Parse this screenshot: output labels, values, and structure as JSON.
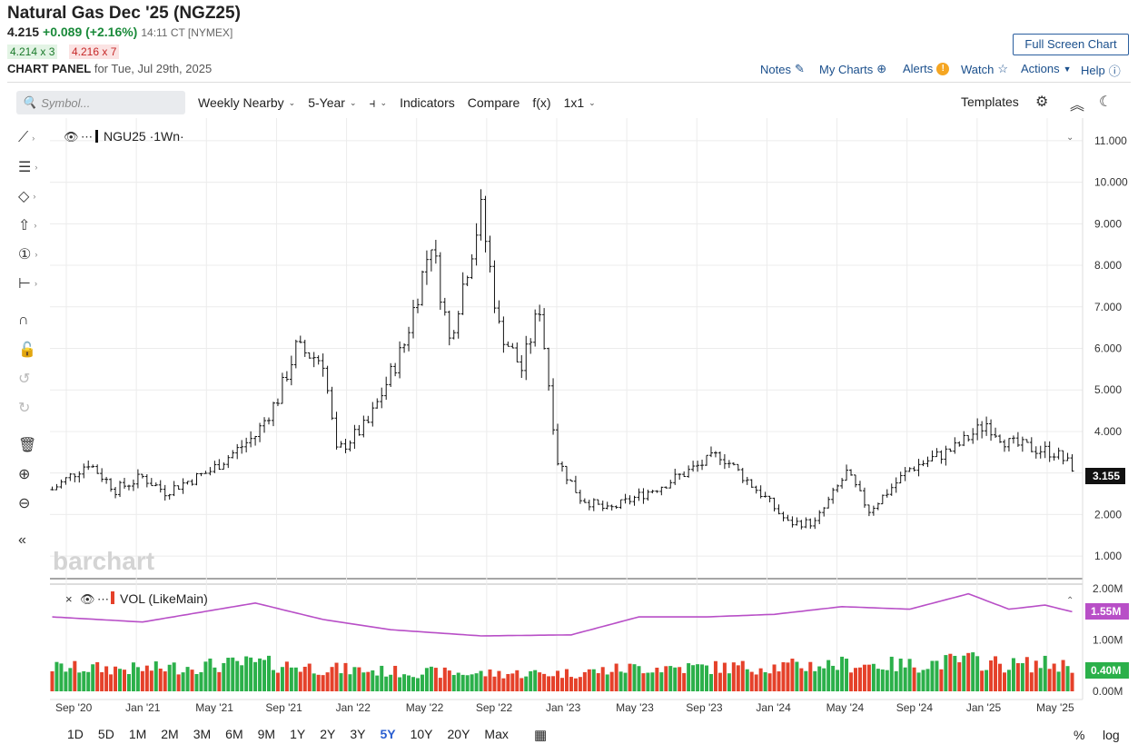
{
  "header": {
    "title": "Natural Gas Dec '25 (NGZ25)",
    "last": "4.215",
    "change": "+0.089 (+2.16%)",
    "time": "14:11 CT [NYMEX]",
    "bid": "4.214 x 3",
    "ask": "4.216 x 7",
    "panel_label": "CHART PANEL",
    "panel_date": "for Tue, Jul 29th, 2025",
    "fullscreen": "Full Screen Chart",
    "links": {
      "notes": "Notes",
      "mycharts": "My Charts",
      "alerts": "Alerts",
      "watch": "Watch",
      "actions": "Actions",
      "help": "Help"
    }
  },
  "toolbar": {
    "symbol_placeholder": "Symbol...",
    "interval": "Weekly Nearby",
    "range": "5-Year",
    "indicators": "Indicators",
    "compare": "Compare",
    "fx": "f(x)",
    "layout": "1x1",
    "templates": "Templates"
  },
  "chart_data": [
    {
      "type": "ohlc",
      "legend": "NGU25 ·1Wn·",
      "last_value_label": "3.155",
      "y_ticks": [
        "11.000",
        "10.000",
        "9.000",
        "8.000",
        "7.000",
        "6.000",
        "5.000",
        "4.000",
        "3.000",
        "2.000",
        "1.000"
      ],
      "ylim": [
        0.5,
        11.5
      ],
      "x_ticks": [
        "Sep '20",
        "Jan '21",
        "May '21",
        "Sep '21",
        "Jan '22",
        "May '22",
        "Sep '22",
        "Jan '23",
        "May '23",
        "Sep '23",
        "Jan '24",
        "May '24",
        "Sep '24",
        "Jan '25",
        "May '25"
      ],
      "watermark": "barchart",
      "series_anchors": [
        {
          "week": 0,
          "close": 2.6
        },
        {
          "week": 8,
          "close": 3.25
        },
        {
          "week": 14,
          "close": 2.6
        },
        {
          "week": 20,
          "close": 2.9
        },
        {
          "week": 25,
          "close": 2.55
        },
        {
          "week": 35,
          "close": 3.05
        },
        {
          "week": 45,
          "close": 3.9
        },
        {
          "week": 50,
          "close": 4.8
        },
        {
          "week": 54,
          "close": 6.0
        },
        {
          "week": 60,
          "close": 5.7
        },
        {
          "week": 63,
          "close": 3.5
        },
        {
          "week": 70,
          "close": 4.2
        },
        {
          "week": 78,
          "close": 6.1
        },
        {
          "week": 84,
          "close": 8.6
        },
        {
          "week": 88,
          "close": 6.2
        },
        {
          "week": 95,
          "close": 9.3
        },
        {
          "week": 99,
          "close": 6.5
        },
        {
          "week": 104,
          "close": 5.5
        },
        {
          "week": 108,
          "close": 7.0
        },
        {
          "week": 112,
          "close": 3.3
        },
        {
          "week": 117,
          "close": 2.4
        },
        {
          "week": 123,
          "close": 2.1
        },
        {
          "week": 135,
          "close": 2.7
        },
        {
          "week": 148,
          "close": 3.45
        },
        {
          "week": 158,
          "close": 2.4
        },
        {
          "week": 163,
          "close": 1.8
        },
        {
          "week": 169,
          "close": 1.8
        },
        {
          "week": 176,
          "close": 3.0
        },
        {
          "week": 181,
          "close": 2.1
        },
        {
          "week": 190,
          "close": 3.1
        },
        {
          "week": 200,
          "close": 3.6
        },
        {
          "week": 207,
          "close": 4.2
        },
        {
          "week": 212,
          "close": 3.7
        },
        {
          "week": 222,
          "close": 3.5
        },
        {
          "week": 226,
          "close": 3.15
        }
      ]
    },
    {
      "type": "bar",
      "legend": "VOL (LikeMain)",
      "y_ticks": [
        "2.00M",
        "1.00M",
        "0.00M"
      ],
      "ylim": [
        0,
        2.0
      ],
      "avg_label": "1.55M",
      "vol_label": "0.40M",
      "avg_anchors": [
        {
          "week": 0,
          "value": 1.45
        },
        {
          "week": 20,
          "value": 1.35
        },
        {
          "week": 45,
          "value": 1.72
        },
        {
          "week": 60,
          "value": 1.4
        },
        {
          "week": 75,
          "value": 1.2
        },
        {
          "week": 95,
          "value": 1.08
        },
        {
          "week": 115,
          "value": 1.1
        },
        {
          "week": 130,
          "value": 1.45
        },
        {
          "week": 145,
          "value": 1.45
        },
        {
          "week": 160,
          "value": 1.5
        },
        {
          "week": 175,
          "value": 1.65
        },
        {
          "week": 190,
          "value": 1.6
        },
        {
          "week": 203,
          "value": 1.9
        },
        {
          "week": 212,
          "value": 1.6
        },
        {
          "week": 220,
          "value": 1.68
        },
        {
          "week": 226,
          "value": 1.55
        }
      ]
    }
  ],
  "bottom": {
    "ranges": [
      "1D",
      "5D",
      "1M",
      "2M",
      "3M",
      "6M",
      "9M",
      "1Y",
      "2Y",
      "3Y",
      "5Y",
      "10Y",
      "20Y",
      "Max"
    ],
    "active": "5Y",
    "percent": "%",
    "log": "log"
  },
  "colors": {
    "up": "#2bb04a",
    "down": "#e5412a",
    "avg": "#b84fc7",
    "accent": "#1a4f8c"
  }
}
